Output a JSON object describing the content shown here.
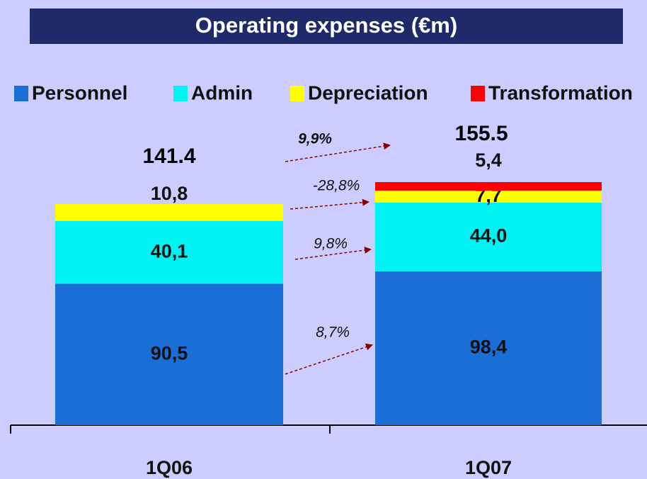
{
  "chart_data": {
    "type": "stacked_bar",
    "title": "Operating expenses (€m)",
    "categories": [
      "1Q06",
      "1Q07"
    ],
    "series": [
      {
        "name": "Personnel",
        "color": "#1a6fd6",
        "values": [
          90.5,
          98.4
        ],
        "value_labels": [
          "90,5",
          "98,4"
        ]
      },
      {
        "name": "Admin",
        "color": "#00f2f2",
        "values": [
          40.1,
          44.0
        ],
        "value_labels": [
          "40,1",
          "44,0"
        ]
      },
      {
        "name": "Depreciation",
        "color": "#ffff00",
        "values": [
          10.8,
          7.7
        ],
        "value_labels": [
          "10,8",
          "7,7"
        ]
      },
      {
        "name": "Transformation",
        "color": "#ff0000",
        "values": [
          null,
          5.4
        ],
        "value_labels": [
          null,
          "5,4"
        ]
      }
    ],
    "totals": [
      141.4,
      155.5
    ],
    "annotations": [
      "9,9%",
      "-28,8%",
      "9,8%",
      "8,7%"
    ],
    "legend": "top"
  }
}
